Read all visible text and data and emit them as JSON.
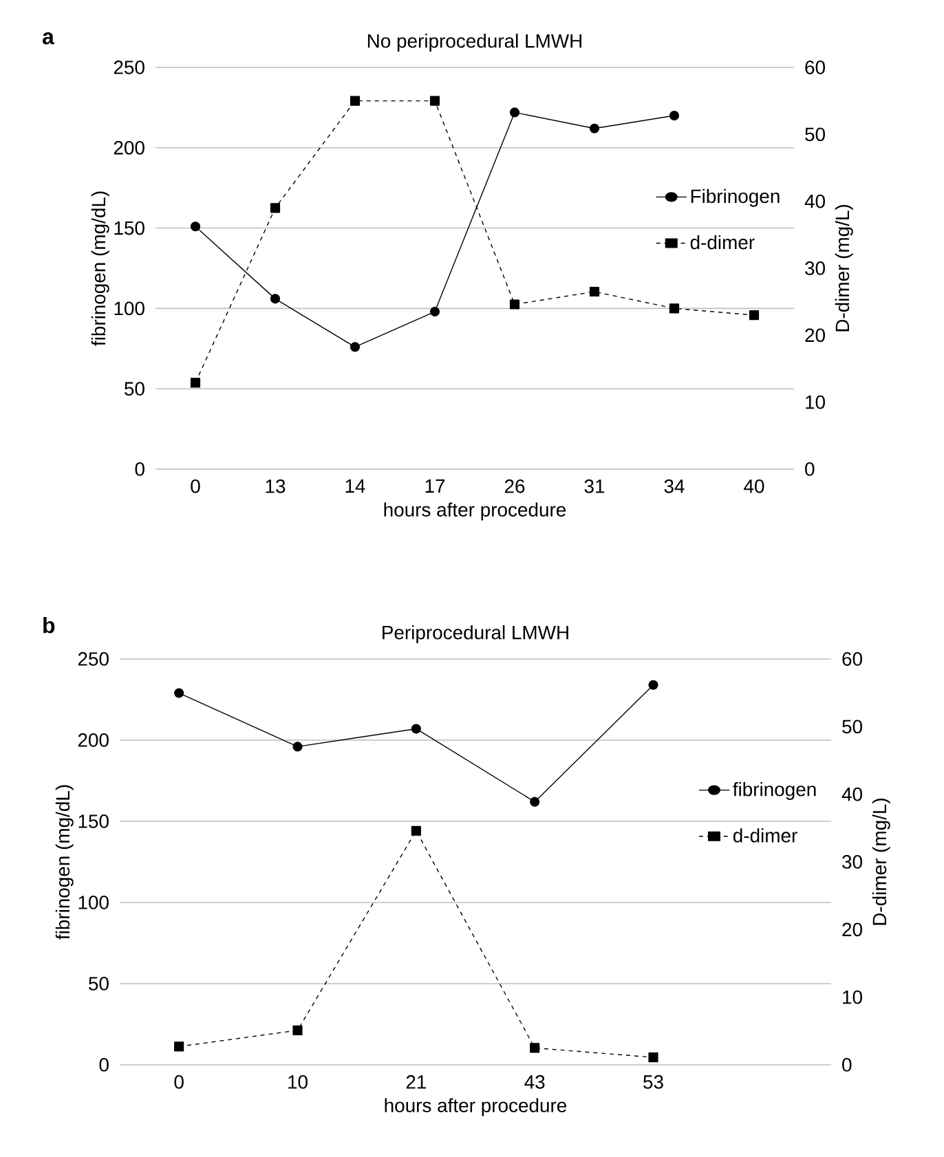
{
  "chart_data": [
    {
      "type": "line",
      "title": "No periprocedural LMWH",
      "xlabel": "hours after procedure",
      "ylabel": "fibrinogen (mg/dL)",
      "y2label": "D-dimer (mg/L)",
      "annotations": [
        "a"
      ],
      "categories": [
        "0",
        "13",
        "14",
        "17",
        "26",
        "31",
        "34",
        "40"
      ],
      "series": [
        {
          "name": "Fibrinogen",
          "color": "#000000",
          "marker": "circle",
          "line_style": "solid",
          "values": [
            151,
            106,
            76,
            98,
            222,
            212,
            220,
            null
          ]
        },
        {
          "name": "d-dimer",
          "color": "#000000",
          "marker": "square",
          "line_style": "dashed",
          "axis": "y2",
          "values": [
            12.9,
            39,
            55,
            55,
            24.6,
            26.5,
            24,
            23
          ]
        }
      ],
      "ylim": [
        0,
        250
      ],
      "yticks": [
        0,
        50,
        100,
        150,
        200,
        250
      ],
      "y2lim": [
        0,
        60
      ],
      "y2ticks": [
        0,
        10,
        20,
        30,
        40,
        50,
        60
      ],
      "grid": "y",
      "legend": "right"
    },
    {
      "type": "line",
      "title": "Periprocedural LMWH",
      "xlabel": "hours after procedure",
      "ylabel": "fibrinogen (mg/dL)",
      "y2label": "D-dimer (mg/L)",
      "annotations": [
        "b"
      ],
      "categories": [
        "0",
        "10",
        "21",
        "43",
        "53",
        null
      ],
      "series": [
        {
          "name": "fibrinogen",
          "color": "#000000",
          "marker": "circle",
          "line_style": "solid",
          "values": [
            229,
            196,
            207,
            162,
            234,
            null
          ]
        },
        {
          "name": "d-dimer",
          "color": "#000000",
          "marker": "square",
          "line_style": "dashed",
          "axis": "y2",
          "values": [
            2.7,
            5.1,
            34.6,
            2.5,
            1.1,
            null
          ]
        }
      ],
      "ylim": [
        0,
        250
      ],
      "yticks": [
        0,
        50,
        100,
        150,
        200,
        250
      ],
      "y2lim": [
        0,
        60
      ],
      "y2ticks": [
        0,
        10,
        20,
        30,
        40,
        50,
        60
      ],
      "grid": "y",
      "legend": "right"
    }
  ]
}
